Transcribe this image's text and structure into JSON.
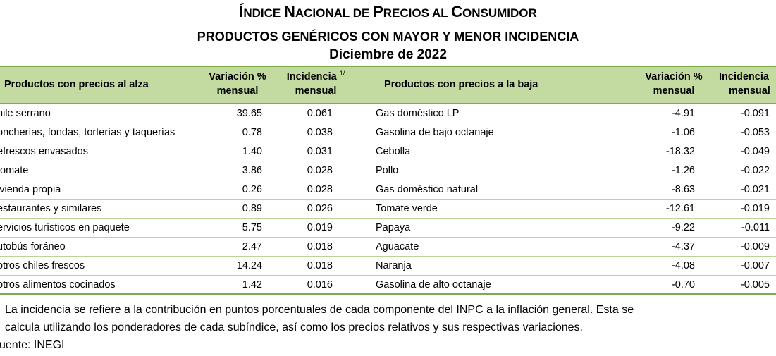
{
  "title": {
    "line1_cap": "Í",
    "line1_sc": "NDICE ",
    "line1_cap2": "N",
    "line1_sc2": "ACIONAL DE ",
    "line1_cap3": "P",
    "line1_sc3": "RECIOS AL ",
    "line1_cap4": "C",
    "line1_sc4": "ONSUMIDOR",
    "line2": "PRODUCTOS GENÉRICOS CON MAYOR Y MENOR INCIDENCIA",
    "line3": "Diciembre de 2022"
  },
  "header": {
    "up_name": "Productos con precios al alza",
    "up_var_1": "Variación %",
    "up_var_2": "mensual",
    "up_inc_1": "Incidencia",
    "up_inc_sup": "1/",
    "up_inc_2": "mensual",
    "down_name": "Productos con precios a la baja",
    "down_var_1": "Variación %",
    "down_var_2": "mensual",
    "down_inc_1": "Incidencia",
    "down_inc_2": "mensual"
  },
  "rows": [
    {
      "up_name": "hile serrano",
      "up_var": "39.65",
      "up_inc": "0.061",
      "down_name": "Gas doméstico LP",
      "down_var": "-4.91",
      "down_inc": "-0.091"
    },
    {
      "up_name": "oncherías, fondas, torterías y taquerías",
      "up_var": "0.78",
      "up_inc": "0.038",
      "down_name": "Gasolina de bajo octanaje",
      "down_var": "-1.06",
      "down_inc": "-0.053"
    },
    {
      "up_name": "efrescos envasados",
      "up_var": "1.40",
      "up_inc": "0.031",
      "down_name": "Cebolla",
      "down_var": "-18.32",
      "down_inc": "-0.049"
    },
    {
      "up_name": "tomate",
      "up_var": "3.86",
      "up_inc": "0.028",
      "down_name": "Pollo",
      "down_var": "-1.26",
      "down_inc": "-0.022"
    },
    {
      "up_name": "ivienda propia",
      "up_var": "0.26",
      "up_inc": "0.028",
      "down_name": "Gas doméstico natural",
      "down_var": "-8.63",
      "down_inc": "-0.021"
    },
    {
      "up_name": "estaurantes y similares",
      "up_var": "0.89",
      "up_inc": "0.026",
      "down_name": "Tomate verde",
      "down_var": "-12.61",
      "down_inc": "-0.019"
    },
    {
      "up_name": "ervicios turísticos en paquete",
      "up_var": "5.75",
      "up_inc": "0.019",
      "down_name": "Papaya",
      "down_var": "-9.22",
      "down_inc": "-0.011"
    },
    {
      "up_name": "utobús foráneo",
      "up_var": "2.47",
      "up_inc": "0.018",
      "down_name": "Aguacate",
      "down_var": "-4.37",
      "down_inc": "-0.009"
    },
    {
      "up_name": "otros chiles frescos",
      "up_var": "14.24",
      "up_inc": "0.018",
      "down_name": "Naranja",
      "down_var": "-4.08",
      "down_inc": "-0.007"
    },
    {
      "up_name": "otros alimentos cocinados",
      "up_var": "1.42",
      "up_inc": "0.016",
      "down_name": "Gasolina de alto octanaje",
      "down_var": "-0.70",
      "down_inc": "-0.005"
    }
  ],
  "notes": {
    "line1": "La incidencia se refiere a la contribución en puntos porcentuales de cada componente del INPC a la inflación general. Esta se",
    "line2": "calcula utilizando los ponderadores de cada subíndice, así como los precios relativos y sus respectivas variaciones.",
    "line3": "uente: INEGI"
  },
  "colors": {
    "header_bg": "#c3dba1",
    "rule_strong": "#7dac4a",
    "rule_light": "#b9d399"
  }
}
